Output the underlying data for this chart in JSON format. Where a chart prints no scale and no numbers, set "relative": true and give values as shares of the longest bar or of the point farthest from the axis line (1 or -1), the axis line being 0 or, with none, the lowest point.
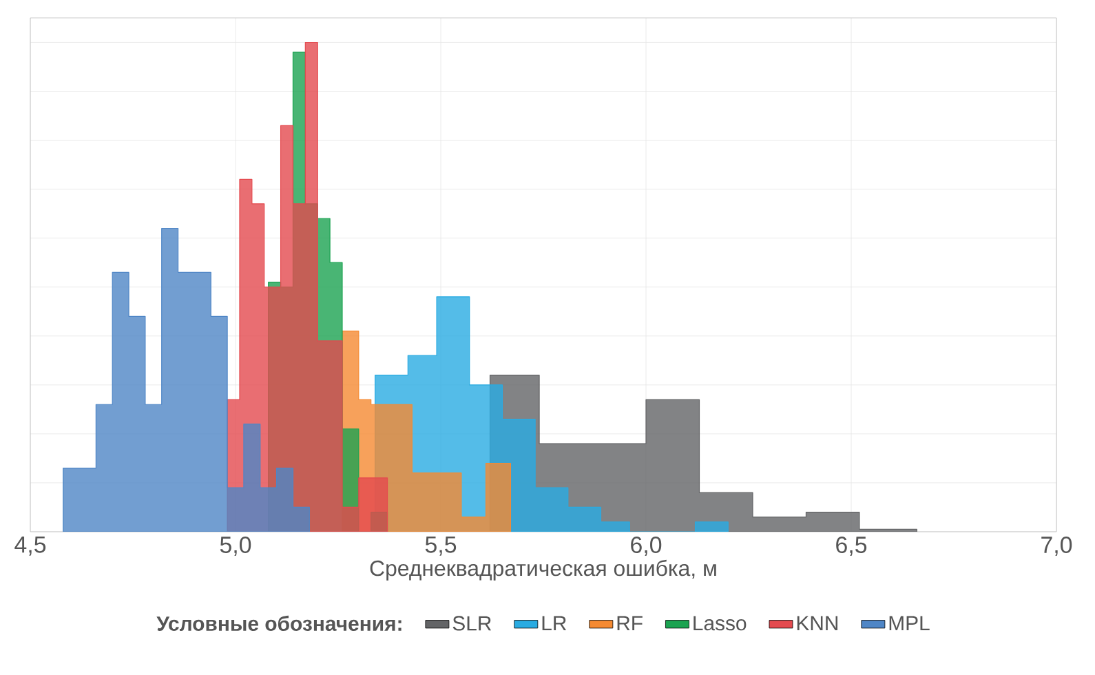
{
  "chart_data": {
    "type": "area",
    "relative": true,
    "xlabel": "Среднеквадратическая ошибка, м",
    "legend_title": "Условные обозначения:",
    "xlim": [
      4.5,
      7.0
    ],
    "xticks": [
      {
        "value": 4.5,
        "label": "4,5"
      },
      {
        "value": 5.0,
        "label": "5,0"
      },
      {
        "value": 5.5,
        "label": "5,5"
      },
      {
        "value": 6.0,
        "label": "6,0"
      },
      {
        "value": 6.5,
        "label": "6,5"
      },
      {
        "value": 7.0,
        "label": "7,0"
      }
    ],
    "grid": true,
    "legend": "bottom",
    "tick_labels": "x",
    "series": [
      {
        "name": "SLR",
        "color": "#636466",
        "x": [
          5.62,
          5.74,
          5.74,
          5.87,
          5.87,
          6.0,
          6.0,
          6.13,
          6.13,
          6.26,
          6.26,
          6.39,
          6.39,
          6.52,
          6.52,
          6.66
        ],
        "values": [
          0.32,
          0.32,
          0.18,
          0.18,
          0.18,
          0.18,
          0.27,
          0.27,
          0.08,
          0.08,
          0.03,
          0.03,
          0.04,
          0.04,
          0.005,
          0.005
        ]
      },
      {
        "name": "LR",
        "color": "#29abe2",
        "x": [
          5.34,
          5.42,
          5.42,
          5.49,
          5.49,
          5.57,
          5.57,
          5.65,
          5.65,
          5.73,
          5.73,
          5.81,
          5.81,
          5.89,
          5.89,
          5.96,
          5.96,
          6.04,
          6.04,
          6.12,
          6.12,
          6.2
        ],
        "values": [
          0.32,
          0.32,
          0.36,
          0.36,
          0.48,
          0.48,
          0.3,
          0.3,
          0.23,
          0.23,
          0.09,
          0.09,
          0.05,
          0.05,
          0.02,
          0.02,
          0,
          0,
          0,
          0,
          0.02,
          0.02
        ]
      },
      {
        "name": "RF",
        "color": "#f58a32",
        "x": [
          5.26,
          5.3,
          5.3,
          5.33,
          5.33,
          5.43,
          5.43,
          5.55,
          5.55,
          5.61,
          5.61,
          5.67
        ],
        "values": [
          0.41,
          0.41,
          0.27,
          0.27,
          0.26,
          0.26,
          0.12,
          0.12,
          0.03,
          0.03,
          0.14,
          0.14
        ]
      },
      {
        "name": "Lasso",
        "color": "#1ba351",
        "x": [
          5.08,
          5.11,
          5.11,
          5.14,
          5.14,
          5.17,
          5.17,
          5.2,
          5.2,
          5.23,
          5.23,
          5.26,
          5.26,
          5.3,
          5.3,
          5.33,
          5.33,
          5.37
        ],
        "values": [
          0.51,
          0.51,
          0.5,
          0.5,
          0.98,
          0.98,
          0.67,
          0.67,
          0.64,
          0.64,
          0.55,
          0.55,
          0.21,
          0.21,
          0,
          0,
          0.04,
          0.04
        ]
      },
      {
        "name": "KNN",
        "color": "#e44a4f",
        "x": [
          4.98,
          5.01,
          5.01,
          5.04,
          5.04,
          5.07,
          5.07,
          5.11,
          5.11,
          5.14,
          5.14,
          5.17,
          5.17,
          5.2,
          5.2,
          5.26,
          5.26,
          5.3,
          5.3,
          5.37
        ],
        "values": [
          0.27,
          0.27,
          0.72,
          0.72,
          0.67,
          0.67,
          0.5,
          0.5,
          0.83,
          0.83,
          0.67,
          0.67,
          1.0,
          1.0,
          0.39,
          0.39,
          0.05,
          0.05,
          0.11,
          0.11
        ]
      },
      {
        "name": "MPL",
        "color": "#4f86c6",
        "x": [
          4.58,
          4.66,
          4.66,
          4.7,
          4.7,
          4.74,
          4.74,
          4.78,
          4.78,
          4.82,
          4.82,
          4.86,
          4.86,
          4.94,
          4.94,
          4.98,
          4.98,
          5.02,
          5.02,
          5.06,
          5.06,
          5.1,
          5.1,
          5.14,
          5.14,
          5.18
        ],
        "values": [
          0.13,
          0.13,
          0.26,
          0.26,
          0.53,
          0.53,
          0.44,
          0.44,
          0.26,
          0.26,
          0.62,
          0.62,
          0.53,
          0.53,
          0.44,
          0.44,
          0.09,
          0.09,
          0.22,
          0.22,
          0.09,
          0.09,
          0.13,
          0.13,
          0.05,
          0.05
        ]
      }
    ]
  }
}
